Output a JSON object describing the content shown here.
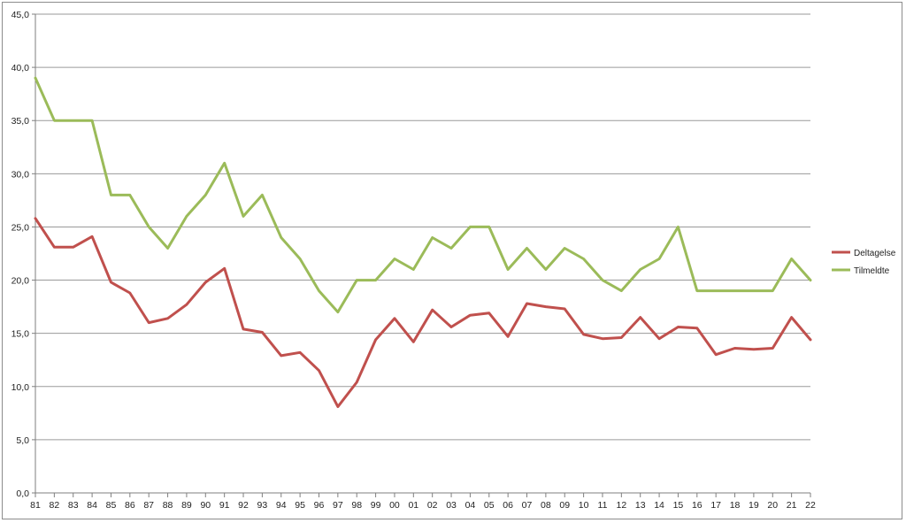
{
  "chart_data": {
    "type": "line",
    "title": "",
    "xlabel": "",
    "ylabel": "",
    "categories": [
      "81",
      "82",
      "83",
      "84",
      "85",
      "86",
      "87",
      "88",
      "89",
      "90",
      "91",
      "92",
      "93",
      "94",
      "95",
      "96",
      "97",
      "98",
      "99",
      "00",
      "01",
      "02",
      "03",
      "04",
      "05",
      "06",
      "07",
      "08",
      "09",
      "10",
      "11",
      "12",
      "13",
      "14",
      "15",
      "16",
      "17",
      "18",
      "19",
      "20",
      "21",
      "22"
    ],
    "ylim": [
      0,
      45
    ],
    "yticks": [
      "0,0",
      "5,0",
      "10,0",
      "15,0",
      "20,0",
      "25,0",
      "30,0",
      "35,0",
      "40,0",
      "45,0"
    ],
    "grid": true,
    "legend_position": "right",
    "series": [
      {
        "name": "Deltagelse",
        "color": "#c0504d",
        "values": [
          25.8,
          23.1,
          23.1,
          24.1,
          19.8,
          18.8,
          16.0,
          16.4,
          17.7,
          19.8,
          21.1,
          15.4,
          15.1,
          12.9,
          13.2,
          11.5,
          8.1,
          10.4,
          14.4,
          16.4,
          14.2,
          17.2,
          15.6,
          16.7,
          16.9,
          14.7,
          17.8,
          17.5,
          17.3,
          14.9,
          14.5,
          14.6,
          16.5,
          14.5,
          15.6,
          15.5,
          13.0,
          13.6,
          13.5,
          13.6,
          16.5,
          14.4
        ]
      },
      {
        "name": "Tilmeldte",
        "color": "#9bbb59",
        "values": [
          39,
          35,
          35,
          35,
          28,
          28,
          25,
          23,
          26,
          28,
          31,
          26,
          28,
          24,
          22,
          19,
          17,
          20,
          20,
          22,
          21,
          24,
          23,
          25,
          25,
          21,
          23,
          21,
          23,
          22,
          20,
          19,
          21,
          22,
          25,
          19,
          19,
          19,
          19,
          19,
          22,
          20
        ]
      }
    ]
  }
}
